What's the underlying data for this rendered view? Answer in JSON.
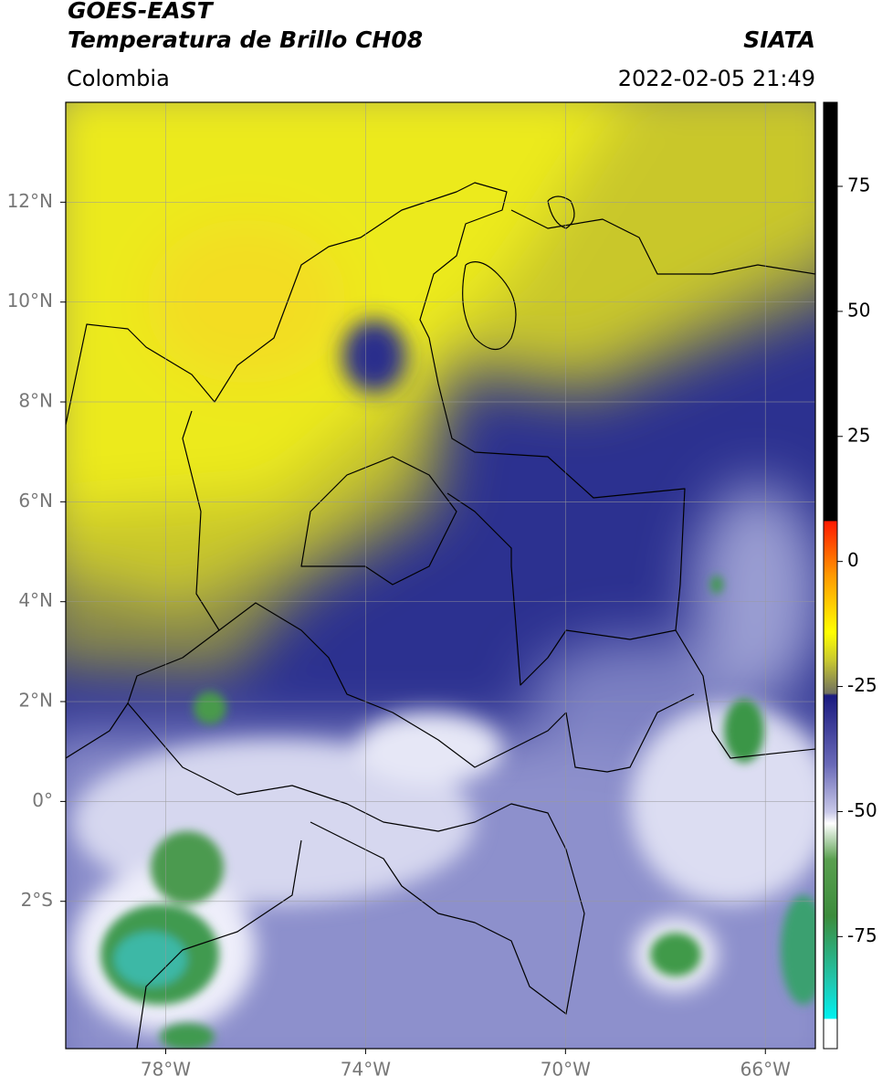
{
  "header": {
    "title_1": "GOES-EAST",
    "title_2": "Temperatura de Brillo CH08",
    "agency": "SIATA",
    "region": "Colombia",
    "datetime": "2022-02-05 21:49"
  },
  "map": {
    "xlim": [
      -80,
      -65
    ],
    "ylim": [
      -4.95,
      14
    ],
    "xticks": [
      {
        "value": -78,
        "label": "78°W"
      },
      {
        "value": -74,
        "label": "74°W"
      },
      {
        "value": -70,
        "label": "70°W"
      },
      {
        "value": -66,
        "label": "66°W"
      }
    ],
    "yticks": [
      {
        "value": 12,
        "label": "12°N"
      },
      {
        "value": 10,
        "label": "10°N"
      },
      {
        "value": 8,
        "label": "8°N"
      },
      {
        "value": 6,
        "label": "6°N"
      },
      {
        "value": 4,
        "label": "4°N"
      },
      {
        "value": 2,
        "label": "2°N"
      },
      {
        "value": 0,
        "label": "0°"
      },
      {
        "value": -2,
        "label": "2°S"
      }
    ],
    "grid": true
  },
  "colorbar": {
    "lim": [
      -97.4,
      91.8
    ],
    "ticks": [
      75,
      50,
      25,
      0,
      -25,
      -50,
      -75
    ]
  }
}
